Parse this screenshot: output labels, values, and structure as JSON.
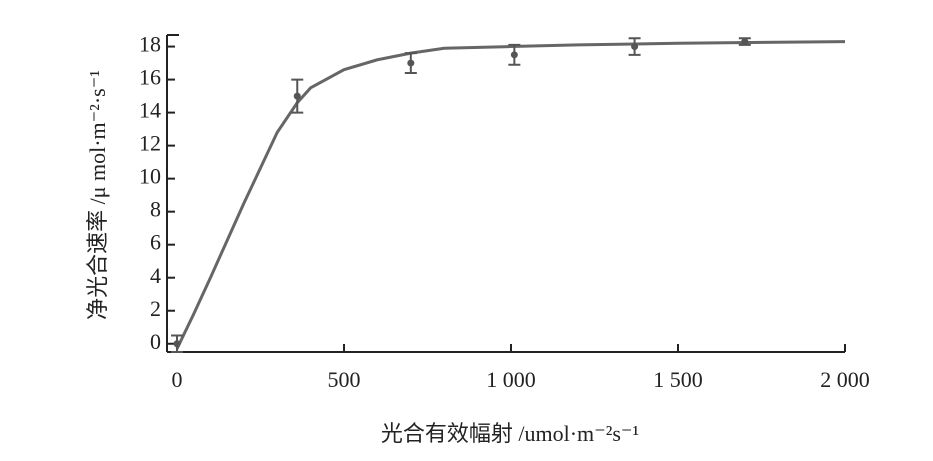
{
  "chart_data": {
    "type": "line",
    "xlabel": "光合有效幅射 /umol·m⁻²s⁻¹",
    "ylabel": "净光合速率 /μ mol·m⁻²·s⁻¹",
    "xlim": [
      -30,
      2000
    ],
    "xticks": [
      0,
      500,
      {
        "value": 1000,
        "label": "1 000"
      },
      {
        "value": 1500,
        "label": "1 500"
      },
      {
        "value": 2000,
        "label": "2 000"
      }
    ],
    "ylim": [
      -0.5,
      18.7
    ],
    "yticks": [
      0,
      2,
      4,
      6,
      8,
      10,
      12,
      14,
      16,
      18
    ],
    "series": [
      {
        "type": "line",
        "color": "#666666",
        "x": [
          0,
          50,
          100,
          200,
          300,
          360,
          400,
          500,
          600,
          700,
          800,
          1000,
          1200,
          1500,
          2000
        ],
        "values": [
          -0.3,
          1.8,
          4,
          8.5,
          12.8,
          14.6,
          15.5,
          16.6,
          17.2,
          17.6,
          17.9,
          18.0,
          18.1,
          18.2,
          18.3
        ]
      },
      {
        "type": "scatter",
        "color": "#555555",
        "x": [
          0,
          360,
          700,
          1010,
          1370,
          1700
        ],
        "values": [
          0,
          15,
          17,
          17.5,
          18,
          18.3
        ],
        "errors": [
          0.5,
          1,
          0.6,
          0.6,
          0.5,
          0.2
        ]
      }
    ]
  }
}
